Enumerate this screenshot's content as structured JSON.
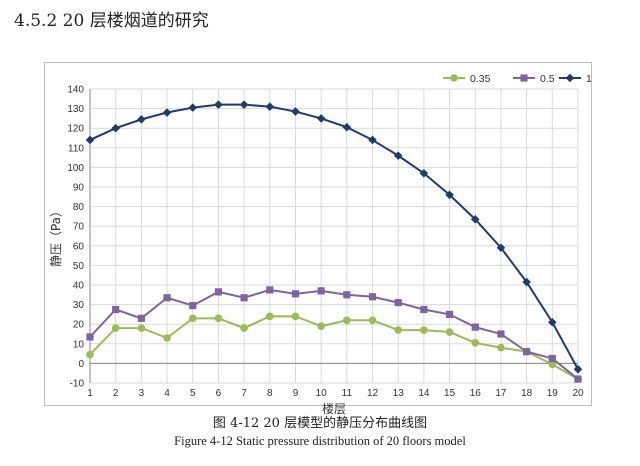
{
  "heading": "4.5.2  20 层楼烟道的研究",
  "caption_cn": "图 4-12  20 层模型的静压分布曲线图",
  "caption_en": "Figure 4-12     Static pressure distribution of 20 floors model",
  "chart_data": {
    "type": "line",
    "title": "",
    "xlabel": "楼层",
    "ylabel": "静压（Pa）",
    "x": [
      1,
      2,
      3,
      4,
      5,
      6,
      7,
      8,
      9,
      10,
      11,
      12,
      13,
      14,
      15,
      16,
      17,
      18,
      19,
      20
    ],
    "ylim": [
      -10,
      140
    ],
    "yticks": [
      -10,
      0,
      10,
      20,
      30,
      40,
      50,
      60,
      70,
      80,
      90,
      100,
      110,
      120,
      130,
      140
    ],
    "grid": true,
    "legend_position": "top-right",
    "series": [
      {
        "name": "0.35",
        "color": "#9bbb59",
        "marker": "circle",
        "values": [
          4.5,
          18,
          18,
          13,
          23,
          23,
          18,
          24,
          24,
          19,
          22,
          22,
          17,
          17,
          16,
          10.5,
          8,
          6,
          -0.5,
          -8
        ]
      },
      {
        "name": "0.5",
        "color": "#8064a2",
        "marker": "square",
        "values": [
          13.5,
          27.5,
          23,
          33.5,
          29.5,
          36.5,
          33.5,
          37.5,
          35.5,
          37,
          35,
          34,
          31,
          27.5,
          25,
          18.5,
          15,
          6,
          2.5,
          -8
        ]
      },
      {
        "name": "1",
        "color": "#1f3c6e",
        "marker": "diamond",
        "values": [
          114,
          120,
          124.5,
          128,
          130.5,
          132,
          132,
          131,
          128.5,
          125,
          120.5,
          114,
          106,
          97,
          86,
          73.5,
          59,
          41.5,
          21,
          -3
        ]
      }
    ]
  }
}
